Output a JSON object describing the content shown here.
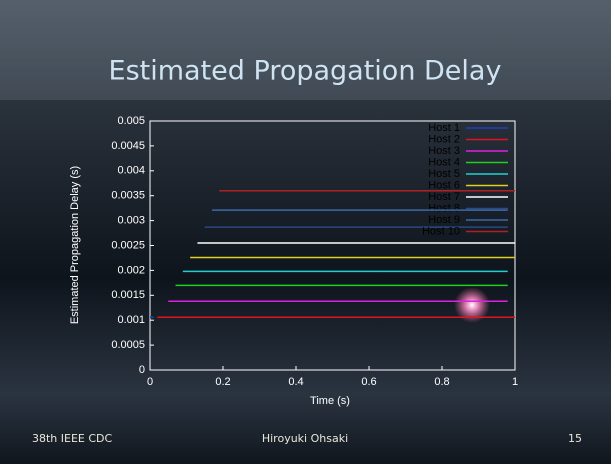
{
  "chart_data": {
    "type": "line",
    "title": "Estimated Propagation Delay",
    "x_label": "Time (s)",
    "y_label": "Estimated Propagation Delay (s)",
    "xlim": [
      0,
      1
    ],
    "xticks": [
      0,
      0.2,
      0.4,
      0.6,
      0.8,
      1
    ],
    "ylim": [
      0,
      0.005
    ],
    "yticks": [
      0,
      0.0005,
      0.001,
      0.0015,
      0.002,
      0.0025,
      0.003,
      0.0035,
      0.004,
      0.0045,
      0.005
    ],
    "legend": "upper-right",
    "series": [
      {
        "name": "Host 1",
        "color": "#1f3fbf",
        "x": [
          0,
          0.01
        ],
        "values": [
          0.00106,
          0.00106
        ]
      },
      {
        "name": "Host 2",
        "color": "#e0141e",
        "x": [
          0.02,
          1
        ],
        "values": [
          0.00106,
          0.00106
        ]
      },
      {
        "name": "Host 3",
        "color": "#e020e0",
        "x": [
          0.05,
          0.98
        ],
        "values": [
          0.00138,
          0.00138
        ]
      },
      {
        "name": "Host 4",
        "color": "#20d020",
        "x": [
          0.07,
          0.98
        ],
        "values": [
          0.0017,
          0.0017
        ]
      },
      {
        "name": "Host 5",
        "color": "#20d0d0",
        "x": [
          0.09,
          0.98
        ],
        "values": [
          0.00198,
          0.00198
        ]
      },
      {
        "name": "Host 6",
        "color": "#e0d020",
        "x": [
          0.11,
          1
        ],
        "values": [
          0.00226,
          0.00226
        ]
      },
      {
        "name": "Host 7",
        "color": "#ffffff",
        "x": [
          0.13,
          1
        ],
        "values": [
          0.00255,
          0.00255
        ]
      },
      {
        "name": "Host 8",
        "color": "#2a4a80",
        "x": [
          0.15,
          0.98
        ],
        "values": [
          0.00287,
          0.00287
        ]
      },
      {
        "name": "Host 9",
        "color": "#3a6aa8",
        "x": [
          0.17,
          0.98
        ],
        "values": [
          0.00321,
          0.00321
        ]
      },
      {
        "name": "Host 10",
        "color": "#b02020",
        "x": [
          0.19,
          1
        ],
        "values": [
          0.0036,
          0.0036
        ]
      }
    ]
  },
  "footer": {
    "left": "38th IEEE CDC",
    "center": "Hiroyuki Ohsaki",
    "right": "15"
  }
}
